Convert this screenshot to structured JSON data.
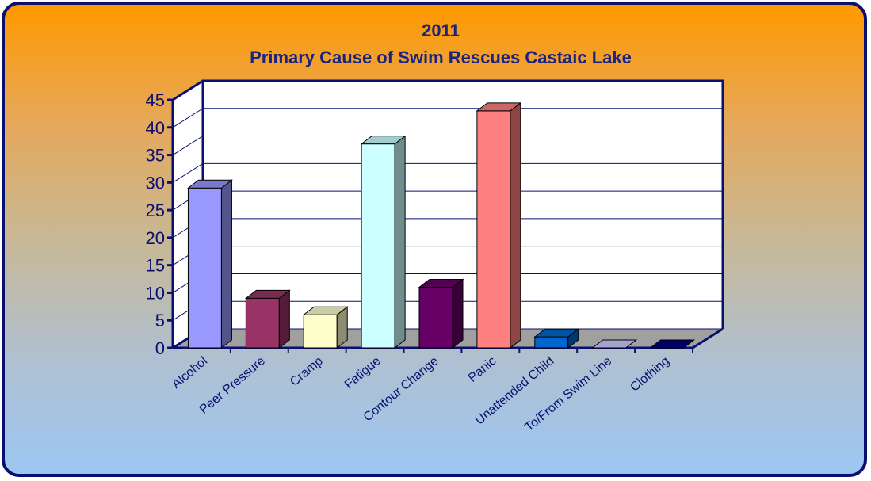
{
  "chart_data": {
    "type": "bar",
    "title": "2011",
    "subtitle": "Primary Cause of Swim Rescues Castaic Lake",
    "xlabel": "",
    "ylabel": "",
    "categories": [
      "Alcohol",
      "Peer Pressure",
      "Cramp",
      "Fatigue",
      "Contour Change",
      "Panic",
      "Unattended Child",
      "To/From Swim Line",
      "Clothing"
    ],
    "values": [
      29,
      9,
      6,
      37,
      11,
      43,
      2,
      0,
      0
    ],
    "ylim": [
      0,
      45
    ],
    "yticks": [
      "0",
      "5",
      "10",
      "15",
      "20",
      "25",
      "30",
      "35",
      "40",
      "45"
    ],
    "grid": true,
    "legend": "none",
    "bar_colors": [
      "#9999ff",
      "#993366",
      "#ffffcc",
      "#ccffff",
      "#660066",
      "#ff8080",
      "#0066cc",
      "#ccccff",
      "#000080"
    ]
  }
}
